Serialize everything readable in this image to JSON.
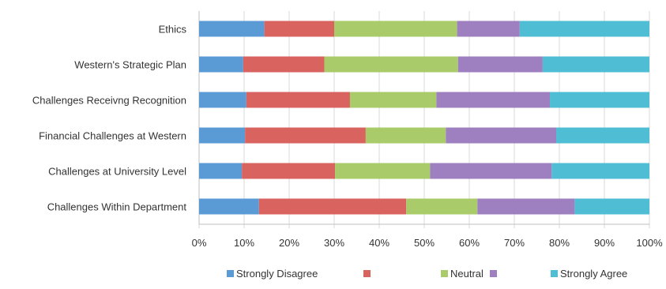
{
  "chart_data": {
    "type": "bar",
    "orientation": "horizontal",
    "stacked": "percent",
    "categories": [
      "Ethics",
      "Western's Strategic Plan",
      "Challenges Receivng Recognition",
      "Financial Challenges at Western",
      "Challenges at University Level",
      "Challenges Within Department"
    ],
    "series": [
      {
        "name": "Strongly Disagree",
        "color": "#5b9bd5",
        "values": [
          14.5,
          9.8,
          10.5,
          10.2,
          9.5,
          13.3
        ]
      },
      {
        "name": "",
        "color": "#d9635f",
        "values": [
          15.5,
          18.0,
          23.0,
          26.8,
          20.7,
          32.7
        ]
      },
      {
        "name": "Neutral",
        "color": "#a9cb6a",
        "values": [
          27.3,
          29.7,
          19.2,
          17.8,
          21.1,
          15.8
        ]
      },
      {
        "name": "",
        "color": "#9e7fc0",
        "values": [
          13.9,
          18.8,
          25.2,
          24.5,
          27.0,
          21.6
        ]
      },
      {
        "name": "Strongly Agree",
        "color": "#4fbdd4",
        "values": [
          28.8,
          23.7,
          22.1,
          20.7,
          21.7,
          16.6
        ]
      }
    ],
    "xlim": [
      0,
      100
    ],
    "xticks": [
      "0%",
      "10%",
      "20%",
      "30%",
      "40%",
      "50%",
      "60%",
      "70%",
      "80%",
      "90%",
      "100%"
    ],
    "grid": "vertical",
    "legend": "bottom"
  }
}
